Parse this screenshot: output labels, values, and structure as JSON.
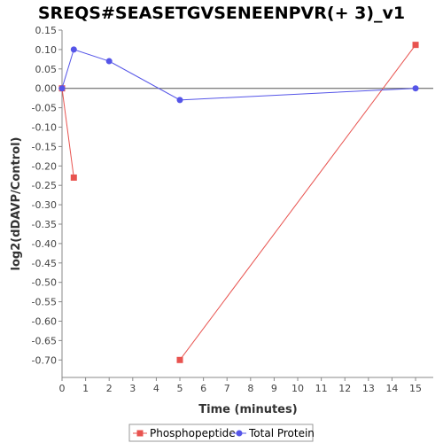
{
  "chart_data": {
    "type": "line",
    "title": "SREQS#SEASETGVSENEENPVR(+ 3)_v1",
    "xlabel": "Time (minutes)",
    "ylabel": "log2(dDAVP/Control)",
    "xlim": [
      0,
      15.75
    ],
    "ylim": [
      -0.745,
      0.15
    ],
    "xticks": [
      0,
      1,
      2,
      3,
      4,
      5,
      6,
      7,
      8,
      9,
      10,
      11,
      12,
      13,
      14,
      15
    ],
    "yticks": [
      0.15,
      0.1,
      0.05,
      0.0,
      -0.05,
      -0.1,
      -0.15,
      -0.2,
      -0.25,
      -0.3,
      -0.35,
      -0.4,
      -0.45,
      -0.5,
      -0.55,
      -0.6,
      -0.65,
      -0.7
    ],
    "ytick_labels": [
      "0.15",
      "0.10",
      "0.05",
      "0.00",
      "-0.05",
      "-0.10",
      "-0.15",
      "-0.20",
      "-0.25",
      "-0.30",
      "-0.35",
      "-0.40",
      "-0.45",
      "-0.50",
      "-0.55",
      "-0.60",
      "-0.65",
      "-0.70"
    ],
    "zero_line": true,
    "grid": false,
    "legend_position": "bottom",
    "series": [
      {
        "name": "Phosphopeptide",
        "color": "#e8534f",
        "marker": "square",
        "segments": [
          [
            [
              0,
              0.0
            ],
            [
              0.5,
              -0.23
            ]
          ],
          [
            [
              5,
              -0.7
            ],
            [
              15,
              0.112
            ]
          ]
        ]
      },
      {
        "name": "Total Protein",
        "color": "#5555e8",
        "marker": "circle",
        "segments": [
          [
            [
              0,
              0.0
            ],
            [
              0.5,
              0.1
            ],
            [
              2,
              0.07
            ],
            [
              5,
              -0.03
            ],
            [
              15,
              0.0
            ]
          ]
        ]
      }
    ]
  }
}
